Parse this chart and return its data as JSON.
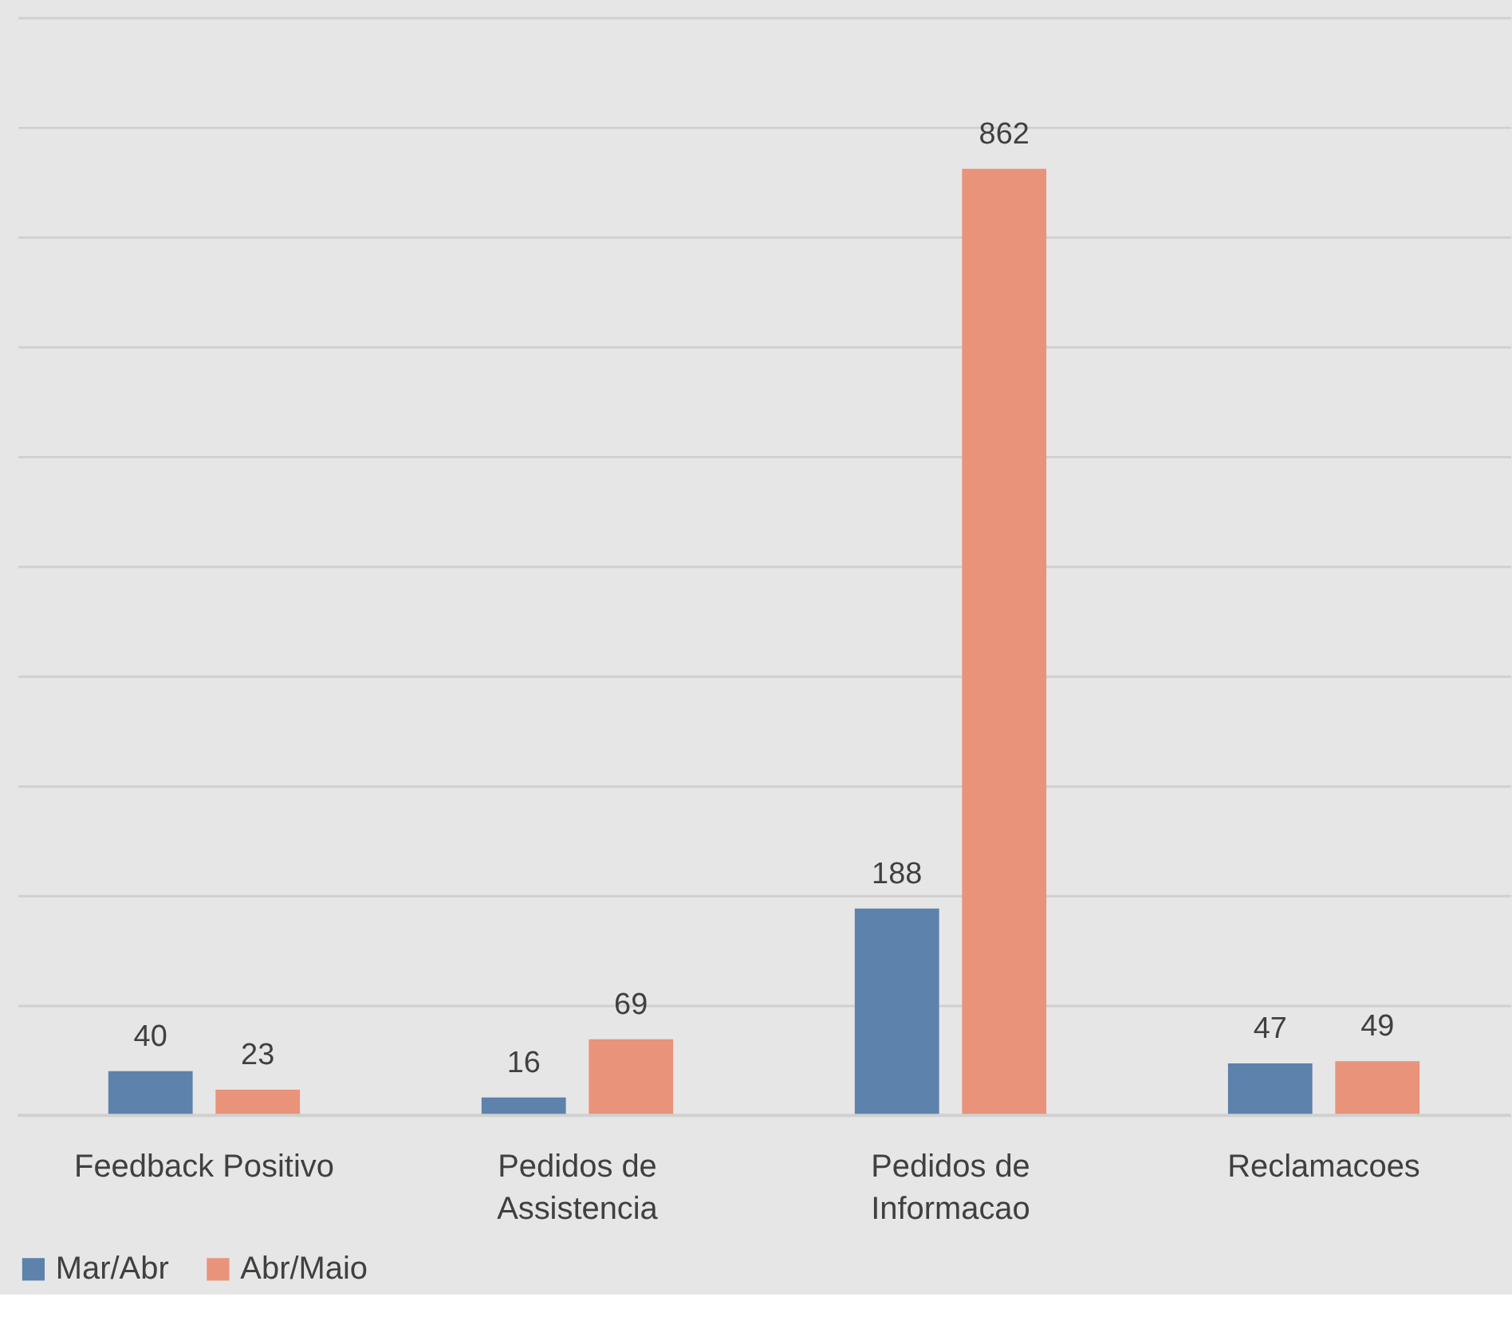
{
  "chart_data": {
    "type": "bar",
    "categories": [
      "Feedback Positivo",
      "Pedidos de Assistencia",
      "Pedidos de Informacao",
      "Reclamacoes"
    ],
    "series": [
      {
        "name": "Mar/Abr",
        "color": "#5d82ab",
        "values": [
          40,
          16,
          188,
          47
        ]
      },
      {
        "name": "Abr/Maio",
        "color": "#e8937a",
        "values": [
          23,
          69,
          862,
          49
        ]
      }
    ],
    "ylim": [
      0,
      1000
    ],
    "yticks": [
      {
        "value": 0,
        "label": null
      },
      {
        "value": 100,
        "label": null
      },
      {
        "value": 200,
        "label": null
      },
      {
        "value": 300,
        "label": null
      },
      {
        "value": 400,
        "label": null
      },
      {
        "value": 500,
        "label": null
      },
      {
        "value": 600,
        "label": null
      },
      {
        "value": 700,
        "label": null
      },
      {
        "value": 800,
        "label": null
      },
      {
        "value": 900,
        "label": null
      },
      {
        "value": 1000,
        "label": null
      }
    ],
    "grid": "y",
    "tick_labels": "x",
    "data_labels": true,
    "legend": "bottom"
  }
}
